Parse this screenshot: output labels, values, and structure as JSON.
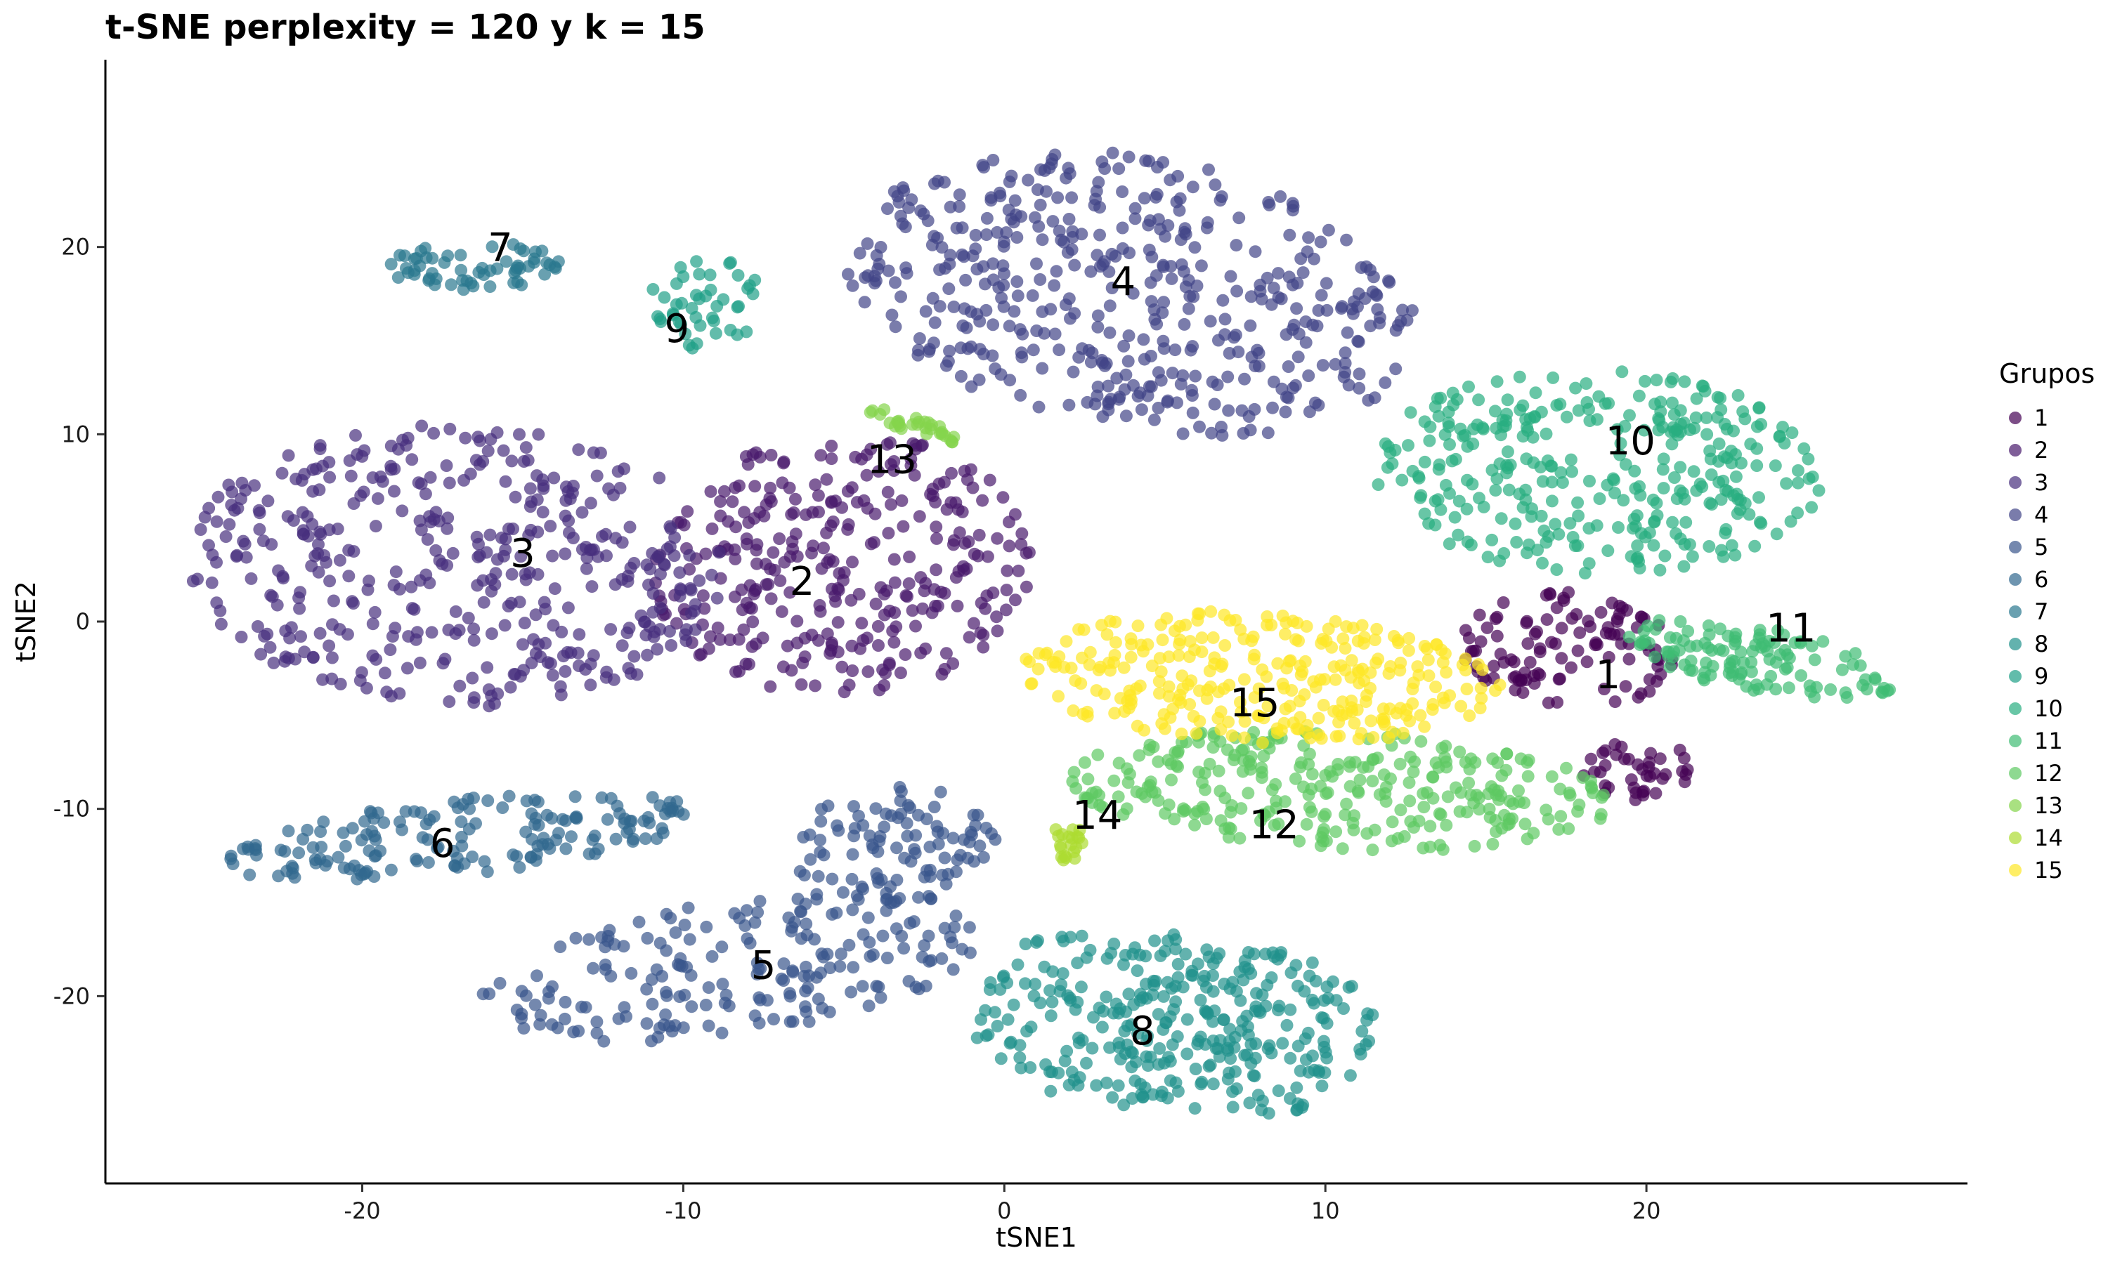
{
  "chart_data": {
    "type": "scatter",
    "title": "t-SNE perplexity = 120 y k = 15",
    "xlabel": "tSNE1",
    "ylabel": "tSNE2",
    "xlim": [
      -28,
      30
    ],
    "ylim": [
      -30,
      30
    ],
    "x_ticks": [
      -20,
      -10,
      0,
      10,
      20
    ],
    "x_tick_labels": [
      "-20",
      "-10",
      "0",
      "10",
      "20"
    ],
    "y_ticks": [
      -20,
      -10,
      0,
      10,
      20
    ],
    "y_tick_labels": [
      "-20",
      "-10",
      "0",
      "10",
      "20"
    ],
    "grid": false,
    "legend": {
      "title": "Grupos",
      "position": "right"
    },
    "series": [
      {
        "name": "1",
        "color": "#440154",
        "label_at": [
          18.8,
          -3.0
        ],
        "clusters": [
          {
            "cx": 17.5,
            "cy": -1.5,
            "rx": 3.5,
            "ry": 3.0,
            "rot": -25,
            "n": 110
          },
          {
            "cx": 19.8,
            "cy": -8.0,
            "rx": 1.8,
            "ry": 1.8,
            "rot": -30,
            "n": 40
          }
        ]
      },
      {
        "name": "2",
        "color": "#481a6c",
        "label_at": [
          -6.3,
          2.0
        ],
        "clusters": [
          {
            "cx": -5.0,
            "cy": 3.0,
            "rx": 6.0,
            "ry": 7.0,
            "rot": -8,
            "n": 320
          }
        ]
      },
      {
        "name": "3",
        "color": "#472f7d",
        "label_at": [
          -15.0,
          3.5
        ],
        "clusters": [
          {
            "cx": -17.0,
            "cy": 3.0,
            "rx": 8.5,
            "ry": 7.5,
            "rot": -10,
            "n": 420
          }
        ]
      },
      {
        "name": "4",
        "color": "#414487",
        "label_at": [
          3.7,
          18.0
        ],
        "clusters": [
          {
            "cx": 4.0,
            "cy": 17.5,
            "rx": 9.5,
            "ry": 7.0,
            "rot": -30,
            "n": 460
          }
        ]
      },
      {
        "name": "5",
        "color": "#39568c",
        "label_at": [
          -7.5,
          -18.5
        ],
        "clusters": [
          {
            "cx": -8.5,
            "cy": -18.5,
            "rx": 8.0,
            "ry": 3.5,
            "rot": 15,
            "n": 200
          },
          {
            "cx": -3.5,
            "cy": -12.0,
            "rx": 3.5,
            "ry": 3.0,
            "rot": 45,
            "n": 100
          }
        ]
      },
      {
        "name": "6",
        "color": "#31688e",
        "label_at": [
          -17.5,
          -12.0
        ],
        "clusters": [
          {
            "cx": -17.0,
            "cy": -11.5,
            "rx": 7.5,
            "ry": 2.0,
            "rot": 10,
            "n": 170
          }
        ]
      },
      {
        "name": "7",
        "color": "#2a788e",
        "label_at": [
          -15.7,
          19.8
        ],
        "clusters": [
          {
            "cx": -16.5,
            "cy": 19.0,
            "rx": 2.8,
            "ry": 1.3,
            "rot": 0,
            "n": 60
          }
        ]
      },
      {
        "name": "8",
        "color": "#21918c",
        "label_at": [
          4.3,
          -22.0
        ],
        "clusters": [
          {
            "cx": 3.5,
            "cy": -21.0,
            "rx": 4.5,
            "ry": 5.0,
            "rot": 0,
            "n": 160
          },
          {
            "cx": 7.5,
            "cy": -22.0,
            "rx": 4.2,
            "ry": 4.5,
            "rot": 0,
            "n": 170
          }
        ]
      },
      {
        "name": "9",
        "color": "#1fa088",
        "label_at": [
          -10.2,
          15.5
        ],
        "clusters": [
          {
            "cx": -9.3,
            "cy": 17.0,
            "rx": 1.8,
            "ry": 2.5,
            "rot": 0,
            "n": 45
          }
        ]
      },
      {
        "name": "10",
        "color": "#28ae80",
        "label_at": [
          19.5,
          9.5
        ],
        "clusters": [
          {
            "cx": 18.5,
            "cy": 8.0,
            "rx": 7.0,
            "ry": 5.5,
            "rot": -5,
            "n": 330
          }
        ]
      },
      {
        "name": "11",
        "color": "#3fbc73",
        "label_at": [
          24.5,
          -0.5
        ],
        "clusters": [
          {
            "cx": 23.5,
            "cy": -2.0,
            "rx": 4.5,
            "ry": 1.7,
            "rot": -18,
            "n": 120
          }
        ]
      },
      {
        "name": "12",
        "color": "#5ec962",
        "label_at": [
          8.4,
          -11.0
        ],
        "clusters": [
          {
            "cx": 10.5,
            "cy": -9.0,
            "rx": 8.5,
            "ry": 3.2,
            "rot": -5,
            "n": 300
          }
        ]
      },
      {
        "name": "13",
        "color": "#84d44b",
        "label_at": [
          -3.5,
          8.5
        ],
        "clusters": [
          {
            "cx": -2.8,
            "cy": 10.5,
            "rx": 1.8,
            "ry": 0.4,
            "rot": -30,
            "n": 30
          }
        ]
      },
      {
        "name": "14",
        "color": "#addc30",
        "label_at": [
          2.9,
          -10.5
        ],
        "clusters": [
          {
            "cx": 2.0,
            "cy": -12.0,
            "rx": 0.6,
            "ry": 1.2,
            "rot": 0,
            "n": 20
          }
        ]
      },
      {
        "name": "15",
        "color": "#fde725",
        "label_at": [
          7.8,
          -4.5
        ],
        "clusters": [
          {
            "cx": 8.0,
            "cy": -3.0,
            "rx": 7.5,
            "ry": 3.5,
            "rot": -5,
            "n": 300
          }
        ]
      }
    ]
  }
}
